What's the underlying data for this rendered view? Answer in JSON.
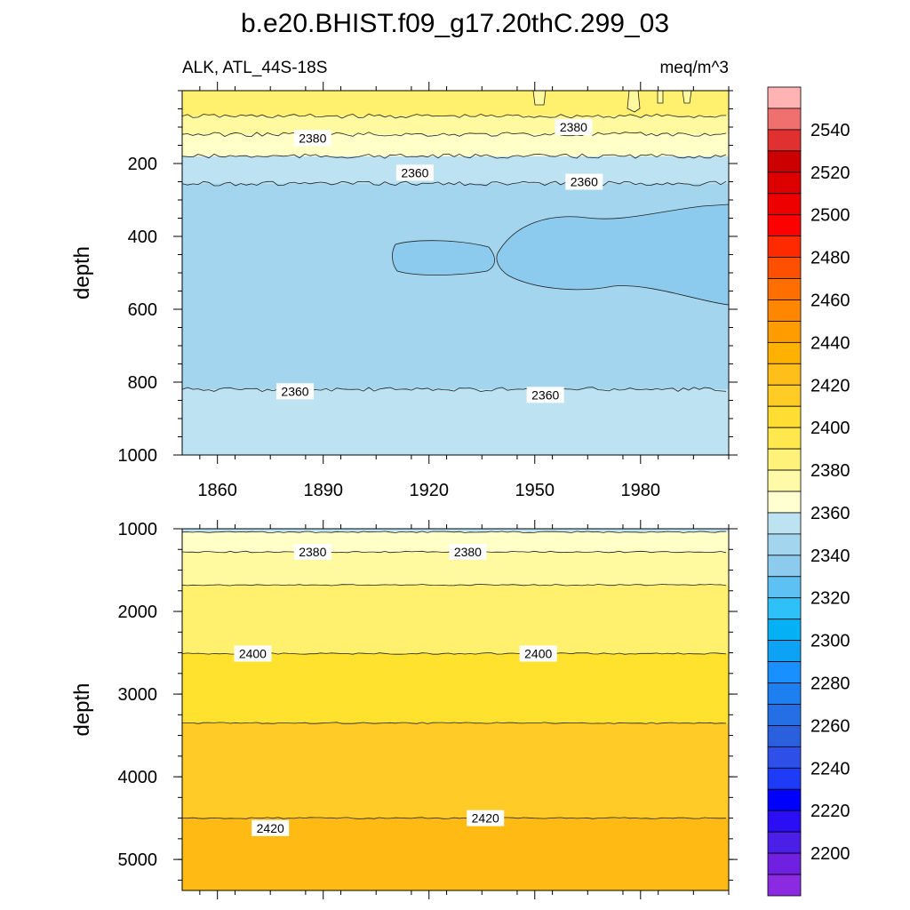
{
  "figure": {
    "title": "b.e20.BHIST.f09_g17.20thC.299_03",
    "subtitle_left": "ALK, ATL_44S-18S",
    "subtitle_right": "meq/m^3"
  },
  "chart_data": [
    {
      "type": "contour",
      "panel": "upper",
      "x_tick_labels": [
        "1860",
        "1890",
        "1920",
        "1950",
        "1980"
      ],
      "x_ticks": [
        1860,
        1890,
        1920,
        1950,
        1980
      ],
      "xlim": [
        1850,
        2005
      ],
      "ylabel": "depth",
      "y_tick_labels": [
        "200",
        "400",
        "600",
        "800",
        "1000"
      ],
      "y_ticks": [
        200,
        400,
        600,
        800,
        1000
      ],
      "ylim": [
        0,
        1000
      ],
      "y_inverted": true,
      "bands": [
        {
          "name": "2390-2400",
          "color": "#fff06e",
          "depth_top": 0,
          "depth_bottom": 70
        },
        {
          "name": "2380-2390",
          "color": "#fff9a0",
          "depth_top": 70,
          "depth_bottom": 120
        },
        {
          "name": "2370-2380",
          "color": "#ffffc8",
          "depth_top": 120,
          "depth_bottom": 180
        },
        {
          "name": "2360-2370",
          "color": "#bde3f2",
          "depth_top": 180,
          "depth_bottom": 255
        },
        {
          "name": "2350-2360",
          "color": "#a4d5ee",
          "depth_top": 255,
          "depth_bottom": 820
        },
        {
          "name": "2360-2370",
          "color": "#bde3f2",
          "depth_top": 820,
          "depth_bottom": 1000
        }
      ],
      "contour_labels": [
        {
          "text": "2380",
          "x": 1887,
          "depth": 130
        },
        {
          "text": "2380",
          "x": 1961,
          "depth": 100
        },
        {
          "text": "2360",
          "x": 1916,
          "depth": 225
        },
        {
          "text": "2360",
          "x": 1964,
          "depth": 250
        },
        {
          "text": "2360",
          "x": 1882,
          "depth": 825
        },
        {
          "text": "2360",
          "x": 1953,
          "depth": 835
        }
      ]
    },
    {
      "type": "contour",
      "panel": "lower",
      "ylabel": "depth",
      "y_tick_labels": [
        "1000",
        "2000",
        "3000",
        "4000",
        "5000"
      ],
      "y_ticks": [
        1000,
        2000,
        3000,
        4000,
        5000
      ],
      "ylim": [
        1000,
        5375
      ],
      "y_inverted": true,
      "xlim": [
        1850,
        2005
      ],
      "bands": [
        {
          "name": "2360-2370",
          "color": "#bde3f2",
          "depth_top": 1000,
          "depth_bottom": 1040
        },
        {
          "name": "2370-2380",
          "color": "#ffffc8",
          "depth_top": 1040,
          "depth_bottom": 1280
        },
        {
          "name": "2380-2390",
          "color": "#fff9a0",
          "depth_top": 1280,
          "depth_bottom": 1680
        },
        {
          "name": "2390-2400",
          "color": "#fff06e",
          "depth_top": 1680,
          "depth_bottom": 2510
        },
        {
          "name": "2400-2410",
          "color": "#ffe22e",
          "depth_top": 2510,
          "depth_bottom": 3350
        },
        {
          "name": "2410-2420",
          "color": "#ffcb26",
          "depth_top": 3350,
          "depth_bottom": 4500
        },
        {
          "name": "2420-2430",
          "color": "#ffbb14",
          "depth_top": 4500,
          "depth_bottom": 5375
        }
      ],
      "contour_labels": [
        {
          "text": "2380",
          "x": 1887,
          "depth": 1280
        },
        {
          "text": "2380",
          "x": 1931,
          "depth": 1280
        },
        {
          "text": "2400",
          "x": 1870,
          "depth": 2510
        },
        {
          "text": "2400",
          "x": 1951,
          "depth": 2510
        },
        {
          "text": "2420",
          "x": 1875,
          "depth": 4620
        },
        {
          "text": "2420",
          "x": 1936,
          "depth": 4500
        }
      ]
    }
  ],
  "colorbar": {
    "tick_labels": [
      "2540",
      "2520",
      "2500",
      "2480",
      "2460",
      "2440",
      "2420",
      "2400",
      "2380",
      "2360",
      "2340",
      "2320",
      "2300",
      "2280",
      "2260",
      "2240",
      "2220",
      "2200"
    ],
    "colors_top_to_bottom": [
      "#ffb3b3",
      "#f07070",
      "#e03030",
      "#cc0000",
      "#dd0000",
      "#ee0000",
      "#ff0000",
      "#ff2a00",
      "#ff4f00",
      "#ff6e00",
      "#ff8700",
      "#ff9d00",
      "#ffb100",
      "#ffbf1a",
      "#ffcc26",
      "#ffdd33",
      "#ffe84d",
      "#fff27a",
      "#fffaa8",
      "#ffffd2",
      "#bde3f2",
      "#a4d5ee",
      "#8ccbee",
      "#5ec1f4",
      "#2ec1f8",
      "#05b0f5",
      "#0ea2f5",
      "#1890ff",
      "#1e7ff0",
      "#256fe6",
      "#2a5fdd",
      "#2e4fe8",
      "#1e3cf5",
      "#0000ff",
      "#2a0ff5",
      "#4c1fe8",
      "#7020e0",
      "#8a2be2"
    ]
  }
}
